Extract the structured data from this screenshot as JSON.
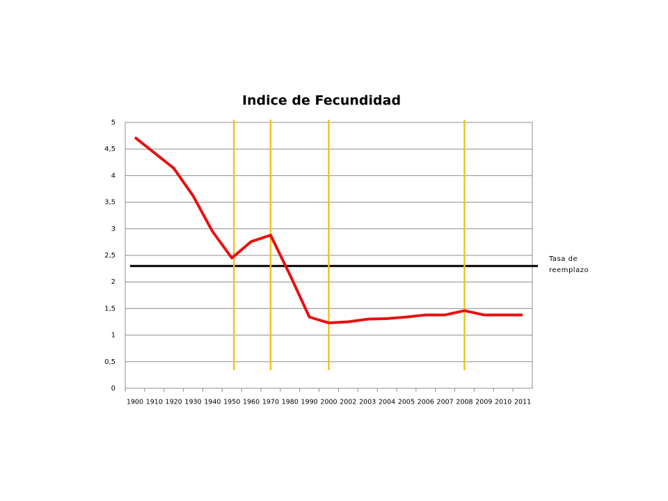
{
  "chart_data": {
    "type": "line",
    "title": "Indice de Fecundidad",
    "categories": [
      "1900",
      "1910",
      "1920",
      "1930",
      "1940",
      "1950",
      "1960",
      "1970",
      "1980",
      "1990",
      "2000",
      "2002",
      "2003",
      "2004",
      "2005",
      "2006",
      "2007",
      "2008",
      "2009",
      "2010",
      "2011"
    ],
    "series": [
      {
        "name": "Indice de Fecundidad",
        "color": "#e81010",
        "values": [
          4.72,
          4.43,
          4.14,
          3.62,
          2.95,
          2.45,
          2.76,
          2.88,
          2.13,
          1.34,
          1.23,
          1.25,
          1.3,
          1.31,
          1.34,
          1.38,
          1.38,
          1.46,
          1.38,
          1.38,
          1.38
        ]
      }
    ],
    "ylim": [
      0,
      5
    ],
    "yticks": [
      0,
      {
        "value": 0.5,
        "label": "0,5"
      },
      1,
      {
        "value": 1.5,
        "label": "1,5"
      },
      2,
      {
        "value": 2.5,
        "label": "2,5"
      },
      3,
      {
        "value": 3.5,
        "label": "3,5"
      },
      4,
      {
        "value": 4.5,
        "label": "4,5"
      },
      5
    ],
    "grid": true,
    "reference_line": {
      "value": 2.3,
      "label": "Tasa de reemplazo",
      "color": "#000000"
    },
    "reference_x": {
      "categories": [
        "1950",
        "1970",
        "2000",
        "2008"
      ],
      "color": "#f2c21b"
    }
  }
}
